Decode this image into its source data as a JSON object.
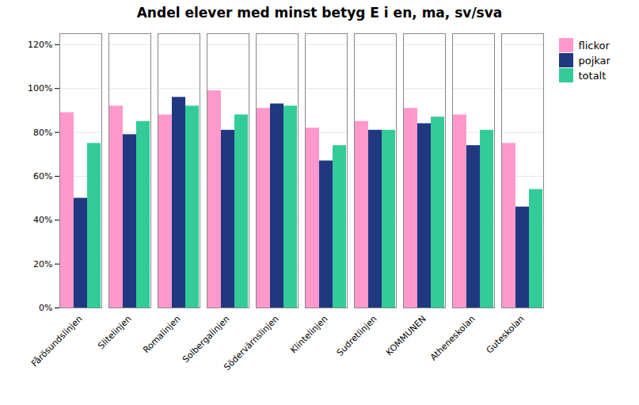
{
  "chart_data": {
    "type": "bar",
    "title": "Andel elever med minst betyg E i en, ma, sv/sva",
    "categories": [
      "Fårösundslinjen",
      "Slitelinjen",
      "Romalinjen",
      "Solbergalinjen",
      "Södervärnslinjen",
      "Klintelinjen",
      "Sudretlinjen",
      "KOMMUNEN",
      "Atheneskolan",
      "Guteskolan"
    ],
    "series": [
      {
        "name": "flickor",
        "color": "#FF99CC",
        "values": [
          0.89,
          0.92,
          0.88,
          0.99,
          0.91,
          0.82,
          0.85,
          0.91,
          0.88,
          0.75
        ]
      },
      {
        "name": "pojkar",
        "color": "#1F3880",
        "values": [
          0.5,
          0.79,
          0.96,
          0.81,
          0.93,
          0.67,
          0.81,
          0.84,
          0.74,
          0.46
        ]
      },
      {
        "name": "totalt",
        "color": "#33CC99",
        "values": [
          0.75,
          0.85,
          0.92,
          0.88,
          0.92,
          0.74,
          0.81,
          0.87,
          0.81,
          0.54
        ]
      }
    ],
    "ylim": [
      0,
      1.25
    ],
    "yticks": [
      {
        "value": 0,
        "label": "0%"
      },
      {
        "value": 0.2,
        "label": "20%"
      },
      {
        "value": 0.4,
        "label": "40%"
      },
      {
        "value": 0.6,
        "label": "60%"
      },
      {
        "value": 0.8,
        "label": "80%"
      },
      {
        "value": 1.0,
        "label": "100%"
      },
      {
        "value": 1.2,
        "label": "120%"
      }
    ],
    "grid": true,
    "legend": "right"
  }
}
